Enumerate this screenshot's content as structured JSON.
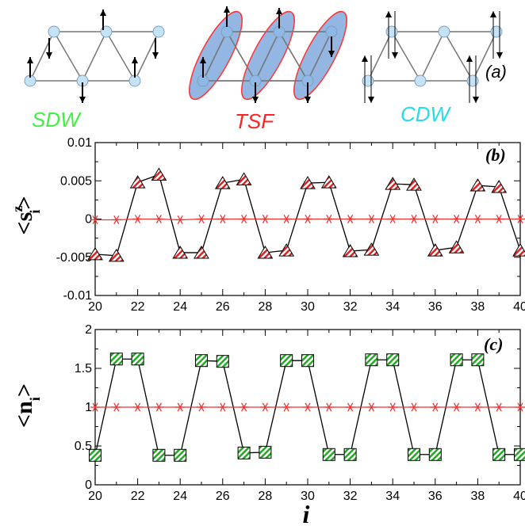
{
  "panel_a": {
    "label": "(a)",
    "phases": [
      {
        "name": "SDW",
        "color": "#44ee44"
      },
      {
        "name": "TSF",
        "color": "#ff2222"
      },
      {
        "name": "CDW",
        "color": "#22ddee"
      }
    ],
    "node_color": "#c6e2f5",
    "pair_color": "#6f9fd8"
  },
  "chart_data": [
    {
      "type": "line",
      "panel_label": "(b)",
      "ylabel_main": "<s",
      "ylabel_sup": "z",
      "ylabel_sub": "i",
      "ylabel_end": ">",
      "xlabel": "",
      "xlim": [
        20,
        40
      ],
      "ylim": [
        -0.01,
        0.01
      ],
      "xticks": [
        20,
        22,
        24,
        26,
        28,
        30,
        32,
        34,
        36,
        38,
        40
      ],
      "yticks": [
        -0.01,
        -0.005,
        0,
        0.005,
        0.01
      ],
      "ytick_labels": [
        "-0.01",
        "-0.005",
        "0",
        "0.005",
        "0.01"
      ],
      "x": [
        20,
        21,
        22,
        23,
        24,
        25,
        26,
        27,
        28,
        29,
        30,
        31,
        32,
        33,
        34,
        35,
        36,
        37,
        38,
        39,
        40
      ],
      "series": [
        {
          "marker": "hatched-triangle",
          "color": "#dd2222",
          "values": [
            -0.0046,
            -0.0048,
            0.0048,
            0.0058,
            -0.0044,
            -0.0044,
            0.0047,
            0.0052,
            -0.0044,
            -0.0041,
            0.0047,
            0.0048,
            -0.0042,
            -0.004,
            0.0046,
            0.0045,
            -0.0041,
            -0.0037,
            0.0044,
            0.0042,
            -0.0041
          ]
        },
        {
          "marker": "asterisk",
          "color": "#ee3333",
          "values": [
            -0.0001,
            -0.0001,
            0,
            0,
            -0.0001,
            0,
            0,
            0,
            0,
            0,
            0,
            0,
            0,
            0,
            0,
            0,
            0,
            0,
            0,
            0,
            0
          ]
        }
      ]
    },
    {
      "type": "line",
      "panel_label": "(c)",
      "ylabel_main": "<n",
      "ylabel_sub": "i",
      "ylabel_end": ">",
      "xlabel": "i",
      "xlim": [
        20,
        40
      ],
      "ylim": [
        0,
        2
      ],
      "xticks": [
        20,
        22,
        24,
        26,
        28,
        30,
        32,
        34,
        36,
        38,
        40
      ],
      "yticks": [
        0,
        0.5,
        1,
        1.5,
        2
      ],
      "ytick_labels": [
        "0",
        "0.5",
        "1",
        "1.5",
        "2"
      ],
      "x": [
        20,
        21,
        22,
        23,
        24,
        25,
        26,
        27,
        28,
        29,
        30,
        31,
        32,
        33,
        34,
        35,
        36,
        37,
        38,
        39,
        40
      ],
      "series": [
        {
          "marker": "hatched-square",
          "color": "#22aa22",
          "values": [
            0.38,
            1.62,
            1.62,
            0.38,
            0.38,
            1.6,
            1.59,
            0.41,
            0.42,
            1.6,
            1.6,
            0.39,
            0.39,
            1.61,
            1.61,
            0.39,
            0.39,
            1.61,
            1.61,
            0.39,
            0.39
          ]
        },
        {
          "marker": "asterisk",
          "color": "#ee3333",
          "values": [
            1,
            1,
            1,
            1,
            1,
            1,
            1,
            1,
            1,
            1,
            1,
            1,
            1,
            1,
            1,
            1,
            1,
            1,
            1,
            1,
            1
          ]
        }
      ]
    }
  ]
}
